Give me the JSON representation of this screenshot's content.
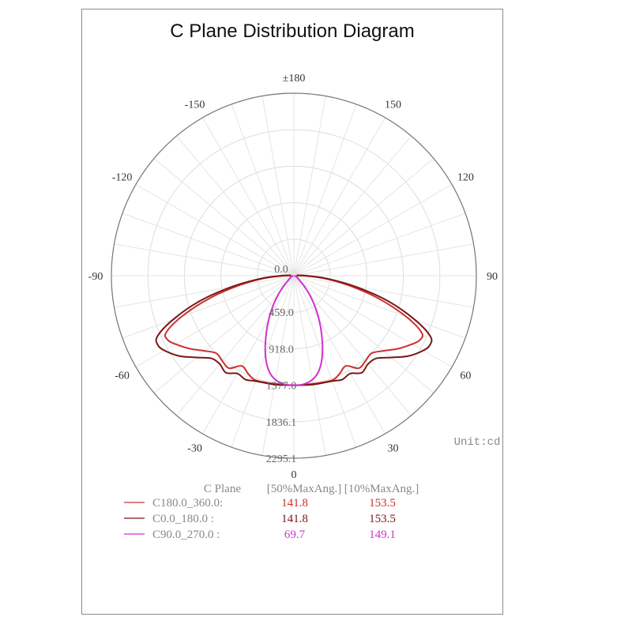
{
  "chart_data": {
    "type": "polar-line",
    "title": "C Plane Distribution Diagram",
    "unit_label": "Unit:cd",
    "angle_labels": [
      {
        "angle": 180,
        "text": "±180"
      },
      {
        "angle": 150,
        "text": "150"
      },
      {
        "angle": -150,
        "text": "-150"
      },
      {
        "angle": 120,
        "text": "120"
      },
      {
        "angle": -120,
        "text": "-120"
      },
      {
        "angle": 90,
        "text": "90"
      },
      {
        "angle": -90,
        "text": "-90"
      },
      {
        "angle": 60,
        "text": "60"
      },
      {
        "angle": -60,
        "text": "-60"
      },
      {
        "angle": 30,
        "text": "30"
      },
      {
        "angle": -30,
        "text": "-30"
      },
      {
        "angle": 0,
        "text": "0"
      }
    ],
    "radial_labels": [
      "0.0",
      "459.0",
      "918.0",
      "1377.0",
      "1836.1",
      "2295.1"
    ],
    "radial_range": [
      0,
      2295.1
    ],
    "grid": true,
    "series": [
      {
        "name": "C180.0_360.0:",
        "color": "#cc3030",
        "max50": "141.8",
        "max10": "153.5",
        "points": [
          [
            0,
            1377
          ],
          [
            10,
            1380
          ],
          [
            20,
            1400
          ],
          [
            25,
            1360
          ],
          [
            30,
            1310
          ],
          [
            35,
            1420
          ],
          [
            40,
            1400
          ],
          [
            45,
            1380
          ],
          [
            50,
            1470
          ],
          [
            55,
            1600
          ],
          [
            60,
            1720
          ],
          [
            63,
            1780
          ],
          [
            66,
            1760
          ],
          [
            70,
            1500
          ],
          [
            75,
            1100
          ],
          [
            80,
            700
          ],
          [
            85,
            380
          ],
          [
            90,
            130
          ],
          [
            95,
            30
          ]
        ]
      },
      {
        "name": "C0.0_180.0  :",
        "color": "#7a1818",
        "max50": "141.8",
        "max10": "153.5",
        "points": [
          [
            0,
            1377
          ],
          [
            10,
            1390
          ],
          [
            20,
            1410
          ],
          [
            25,
            1440
          ],
          [
            30,
            1420
          ],
          [
            35,
            1490
          ],
          [
            40,
            1450
          ],
          [
            45,
            1470
          ],
          [
            50,
            1600
          ],
          [
            55,
            1760
          ],
          [
            60,
            1880
          ],
          [
            63,
            1920
          ],
          [
            66,
            1880
          ],
          [
            70,
            1620
          ],
          [
            75,
            1220
          ],
          [
            80,
            780
          ],
          [
            85,
            420
          ],
          [
            90,
            160
          ],
          [
            95,
            40
          ]
        ]
      },
      {
        "name": "C90.0_270.0 :",
        "color": "#d030d0",
        "max50": "69.7",
        "max10": "149.1",
        "points": [
          [
            0,
            1377
          ],
          [
            5,
            1370
          ],
          [
            10,
            1330
          ],
          [
            15,
            1230
          ],
          [
            20,
            1050
          ],
          [
            25,
            830
          ],
          [
            30,
            630
          ],
          [
            35,
            450
          ],
          [
            40,
            300
          ],
          [
            45,
            180
          ],
          [
            50,
            100
          ],
          [
            60,
            50
          ],
          [
            70,
            25
          ],
          [
            90,
            5
          ]
        ]
      }
    ]
  },
  "legend": {
    "header_plane": "C Plane",
    "header_50": "[50%MaxAng.]",
    "header_10": "[10%MaxAng.]"
  }
}
